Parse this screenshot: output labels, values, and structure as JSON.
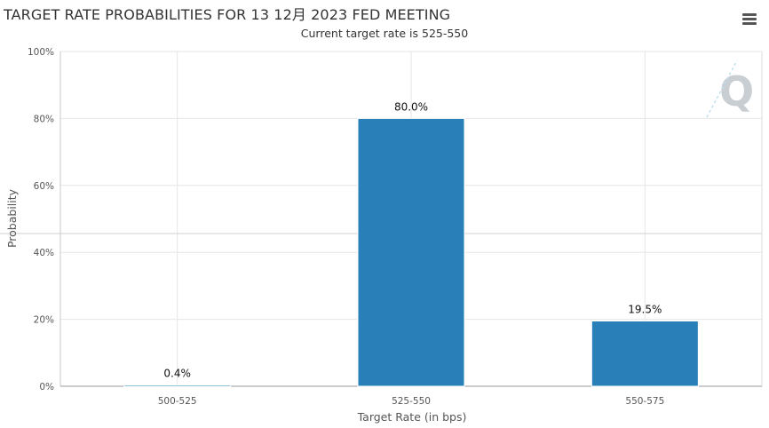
{
  "chart_data": {
    "type": "bar",
    "title": "TARGET RATE PROBABILITIES FOR 13 12月 2023 FED MEETING",
    "subtitle": "Current target rate is 525-550",
    "xlabel": "Target Rate (in bps)",
    "ylabel": "Probability",
    "categories": [
      "500-525",
      "525-550",
      "550-575"
    ],
    "values": [
      0.4,
      80.0,
      19.5
    ],
    "data_labels": [
      "0.4%",
      "80.0%",
      "19.5%"
    ],
    "ylim": [
      0,
      100
    ],
    "yticks": [
      0,
      20,
      40,
      60,
      80,
      100
    ],
    "ytick_labels": [
      "0%",
      "20%",
      "40%",
      "60%",
      "80%",
      "100%"
    ],
    "grid": true,
    "bar_color": "#2980b9"
  },
  "toolbar": {
    "menu_icon": "hamburger-menu-icon"
  },
  "watermark": {
    "icon": "q-logo-icon",
    "text": "Q"
  }
}
